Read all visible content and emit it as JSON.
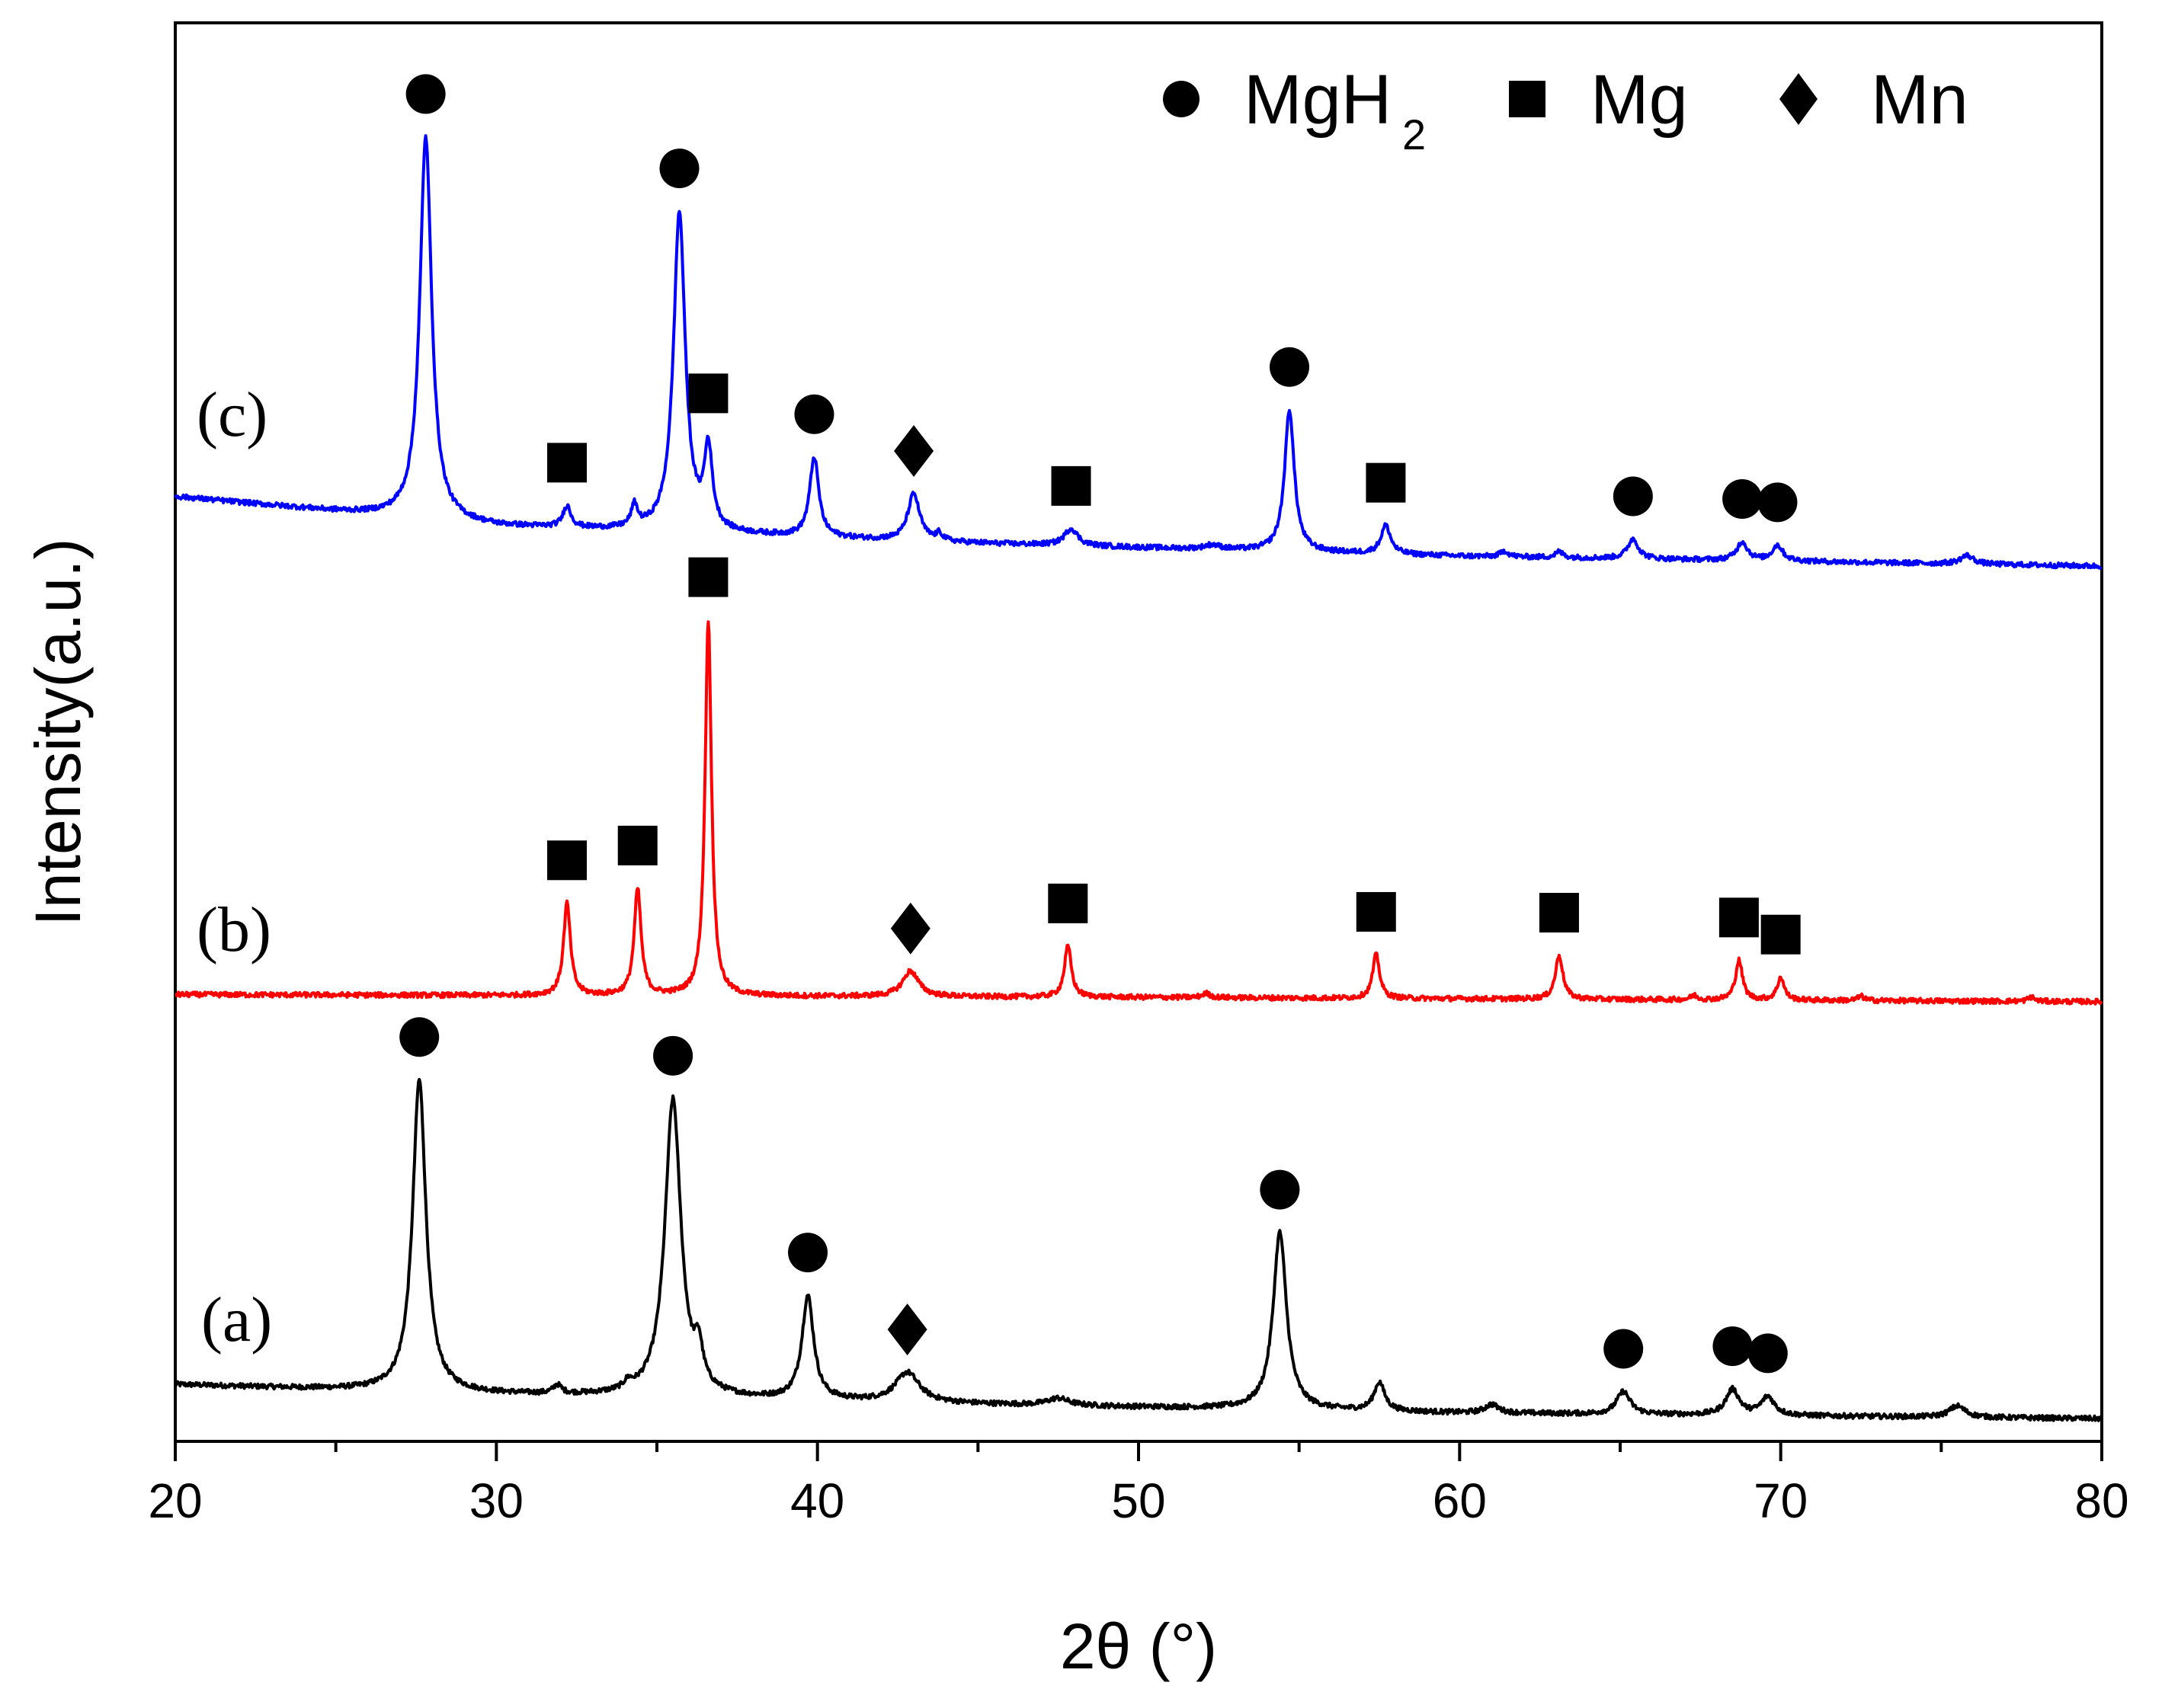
{
  "chart_data": {
    "type": "line",
    "title": "",
    "xlabel": "2θ (°)",
    "ylabel": "Intensity(a.u.)",
    "xlim": [
      20,
      80
    ],
    "ylim": [
      0,
      100
    ],
    "x_ticks": [
      20,
      30,
      40,
      50,
      60,
      70,
      80
    ],
    "x_tick_labels": [
      "20",
      "30",
      "40",
      "50",
      "60",
      "70",
      "80"
    ],
    "grid": false,
    "legend_position": "top-right",
    "legend": [
      {
        "marker": "circle",
        "label": "MgH",
        "subscript": "2"
      },
      {
        "marker": "square",
        "label": "Mg",
        "subscript": ""
      },
      {
        "marker": "diamond",
        "label": "Mn",
        "subscript": ""
      }
    ],
    "series": [
      {
        "name": "(a)",
        "color": "#000000",
        "baseline": [
          [
            20,
            4.0
          ],
          [
            30,
            3.3
          ],
          [
            45,
            2.6
          ],
          [
            60,
            2.0
          ],
          [
            80,
            1.6
          ]
        ],
        "peaks": [
          [
            27.6,
            22.0,
            0.25
          ],
          [
            35.5,
            21.0,
            0.3
          ],
          [
            36.3,
            2.5,
            0.15
          ],
          [
            39.7,
            7.3,
            0.22
          ],
          [
            42.8,
            2.1,
            0.45
          ],
          [
            54.4,
            12.5,
            0.25
          ],
          [
            57.5,
            2.0,
            0.2
          ],
          [
            61.0,
            0.6,
            0.25
          ],
          [
            65.1,
            1.6,
            0.25
          ],
          [
            68.5,
            1.8,
            0.25
          ],
          [
            69.6,
            1.3,
            0.25
          ],
          [
            75.5,
            0.8,
            0.3
          ],
          [
            31.9,
            0.6,
            0.15
          ],
          [
            34.1,
            0.5,
            0.15
          ],
          [
            47.5,
            0.5,
            0.4
          ]
        ],
        "markers": [
          {
            "x": 27.6,
            "type": "circle"
          },
          {
            "x": 35.5,
            "type": "circle"
          },
          {
            "x": 39.7,
            "type": "circle"
          },
          {
            "x": 42.8,
            "type": "diamond"
          },
          {
            "x": 54.4,
            "type": "circle"
          },
          {
            "x": 65.1,
            "type": "circle"
          },
          {
            "x": 68.5,
            "type": "circle"
          },
          {
            "x": 69.6,
            "type": "circle"
          }
        ]
      },
      {
        "name": "(b)",
        "color": "#ff0000",
        "baseline": [
          [
            20,
            31.5
          ],
          [
            50,
            31.3
          ],
          [
            80,
            31.0
          ]
        ],
        "peaks": [
          [
            32.2,
            6.5,
            0.13
          ],
          [
            34.4,
            7.5,
            0.13
          ],
          [
            36.6,
            26.5,
            0.12
          ],
          [
            42.9,
            1.8,
            0.3
          ],
          [
            47.8,
            3.6,
            0.13
          ],
          [
            57.4,
            3.1,
            0.13
          ],
          [
            63.1,
            3.1,
            0.14
          ],
          [
            68.7,
            2.8,
            0.13
          ],
          [
            70.0,
            1.6,
            0.13
          ],
          [
            67.3,
            0.3,
            0.12
          ],
          [
            72.5,
            0.3,
            0.12
          ],
          [
            77.8,
            0.3,
            0.12
          ],
          [
            52.1,
            0.3,
            0.15
          ]
        ],
        "markers": [
          {
            "x": 32.2,
            "type": "square"
          },
          {
            "x": 34.4,
            "type": "square"
          },
          {
            "x": 36.6,
            "type": "square"
          },
          {
            "x": 42.9,
            "type": "diamond"
          },
          {
            "x": 47.8,
            "type": "square"
          },
          {
            "x": 57.4,
            "type": "square"
          },
          {
            "x": 63.1,
            "type": "square"
          },
          {
            "x": 68.7,
            "type": "square"
          },
          {
            "x": 70.0,
            "type": "square"
          }
        ]
      },
      {
        "name": "(c)",
        "color": "#0000ff",
        "baseline": [
          [
            20,
            66.6
          ],
          [
            30,
            64.5
          ],
          [
            45,
            63.3
          ],
          [
            60,
            62.4
          ],
          [
            80,
            61.7
          ]
        ],
        "peaks": [
          [
            27.8,
            27.0,
            0.22
          ],
          [
            35.7,
            22.5,
            0.22
          ],
          [
            36.6,
            5.6,
            0.15
          ],
          [
            39.9,
            5.6,
            0.17
          ],
          [
            43.0,
            3.3,
            0.22
          ],
          [
            54.7,
            10.0,
            0.18
          ],
          [
            57.7,
            2.0,
            0.18
          ],
          [
            65.4,
            1.4,
            0.2
          ],
          [
            68.8,
            1.3,
            0.2
          ],
          [
            69.9,
            1.1,
            0.2
          ],
          [
            75.8,
            0.6,
            0.25
          ],
          [
            32.2,
            1.5,
            0.15
          ],
          [
            34.3,
            1.5,
            0.12
          ],
          [
            47.9,
            1.2,
            0.25
          ],
          [
            43.8,
            0.5,
            0.12
          ],
          [
            61.4,
            0.4,
            0.15
          ],
          [
            63.1,
            0.4,
            0.15
          ],
          [
            52.3,
            0.3,
            0.3
          ]
        ],
        "markers": [
          {
            "x": 27.8,
            "type": "circle"
          },
          {
            "x": 32.2,
            "type": "square"
          },
          {
            "x": 35.7,
            "type": "circle"
          },
          {
            "x": 36.6,
            "type": "square"
          },
          {
            "x": 39.9,
            "type": "circle"
          },
          {
            "x": 43.0,
            "type": "diamond"
          },
          {
            "x": 47.9,
            "type": "square"
          },
          {
            "x": 54.7,
            "type": "circle"
          },
          {
            "x": 57.7,
            "type": "square"
          },
          {
            "x": 65.4,
            "type": "circle"
          },
          {
            "x": 68.8,
            "type": "circle"
          },
          {
            "x": 69.9,
            "type": "circle"
          }
        ]
      }
    ]
  }
}
